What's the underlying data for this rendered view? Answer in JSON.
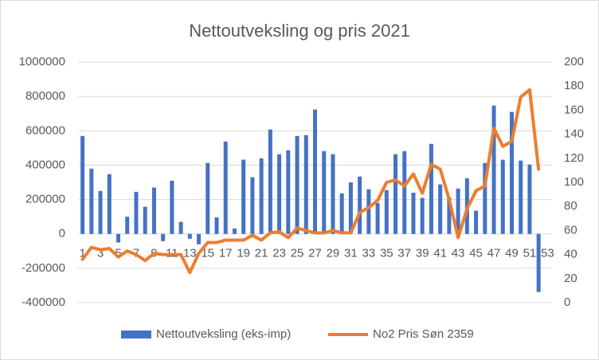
{
  "chart_data": {
    "type": "bar-line",
    "title": "Nettoutveksling og pris 2021",
    "categories": [
      1,
      null,
      3,
      null,
      5,
      null,
      7,
      null,
      9,
      null,
      11,
      null,
      13,
      null,
      15,
      null,
      17,
      null,
      19,
      null,
      21,
      null,
      23,
      null,
      25,
      null,
      27,
      null,
      29,
      null,
      31,
      null,
      33,
      null,
      35,
      null,
      37,
      null,
      39,
      null,
      41,
      null,
      43,
      null,
      45,
      null,
      47,
      null,
      49,
      null,
      51,
      null,
      53
    ],
    "series": [
      {
        "name": "Nettoutveksling (eks-imp)",
        "type": "bar",
        "color": "#4472c4",
        "values": [
          570000,
          380000,
          250000,
          348000,
          -50000,
          100000,
          245000,
          158000,
          270000,
          -42000,
          310000,
          70000,
          -28000,
          -60000,
          413000,
          97000,
          538000,
          32000,
          432000,
          330000,
          440000,
          608000,
          464000,
          487000,
          570000,
          575000,
          724000,
          482000,
          464000,
          236000,
          300000,
          334000,
          260000,
          180000,
          255000,
          464000,
          482000,
          240000,
          210000,
          524000,
          288000,
          213000,
          264000,
          324000,
          135000,
          413000,
          747000,
          432000,
          710000,
          427000,
          404000,
          -338000,
          null
        ]
      },
      {
        "name": "No2 Pris Søn 2359",
        "type": "line",
        "axis": "y2",
        "color": "#ed7d31",
        "values": [
          36,
          46,
          44,
          45,
          38,
          43,
          40,
          35,
          41,
          40,
          40,
          40,
          25,
          41,
          50,
          50,
          52,
          52,
          52,
          56,
          52,
          58,
          59,
          54,
          62,
          60,
          58,
          58,
          60,
          58,
          58,
          75,
          79,
          85,
          100,
          102,
          97,
          107,
          91,
          115,
          111,
          86,
          54,
          78,
          93,
          97,
          145,
          130,
          134,
          171,
          177,
          111,
          null
        ]
      }
    ],
    "ylim": [
      -400000,
      1000000
    ],
    "yticks": [
      -400000,
      -200000,
      0,
      200000,
      400000,
      600000,
      800000,
      1000000
    ],
    "y2lim": [
      0,
      200
    ],
    "y2ticks": [
      0,
      20,
      40,
      60,
      80,
      100,
      120,
      140,
      160,
      180,
      200
    ],
    "grid": true,
    "legend": "bottom"
  }
}
